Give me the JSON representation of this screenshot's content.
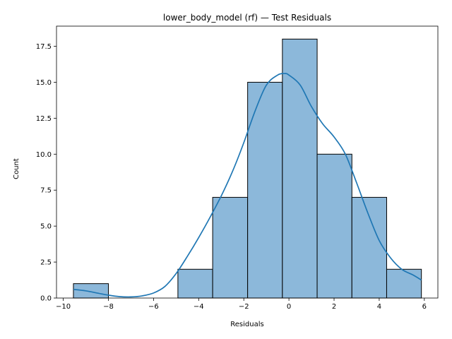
{
  "chart_data": {
    "type": "bar",
    "subtype": "histogram",
    "title": "lower_body_model (rf) — Test Residuals",
    "xlabel": "Residuals",
    "ylabel": "Count",
    "xlim": [
      -10.3,
      6.6
    ],
    "ylim": [
      0,
      18.9
    ],
    "xticks": [
      -10,
      -8,
      -6,
      -4,
      -2,
      0,
      2,
      4,
      6
    ],
    "xtick_labels": [
      "−10",
      "−8",
      "−6",
      "−4",
      "−2",
      "0",
      "2",
      "4",
      "6"
    ],
    "yticks": [
      0,
      2.5,
      5,
      7.5,
      10,
      12.5,
      15,
      17.5
    ],
    "ytick_labels": [
      "0.0",
      "2.5",
      "5.0",
      "7.5",
      "10.0",
      "12.5",
      "15.0",
      "17.5"
    ],
    "bins": [
      {
        "x0": -9.55,
        "x1": -8.0,
        "count": 1
      },
      {
        "x0": -8.0,
        "x1": -6.46,
        "count": 0
      },
      {
        "x0": -6.46,
        "x1": -4.92,
        "count": 0
      },
      {
        "x0": -4.92,
        "x1": -3.38,
        "count": 2
      },
      {
        "x0": -3.38,
        "x1": -1.83,
        "count": 7
      },
      {
        "x0": -1.83,
        "x1": -0.29,
        "count": 15
      },
      {
        "x0": -0.29,
        "x1": 1.25,
        "count": 18
      },
      {
        "x0": 1.25,
        "x1": 2.79,
        "count": 10
      },
      {
        "x0": 2.79,
        "x1": 4.33,
        "count": 7
      },
      {
        "x0": 4.33,
        "x1": 5.87,
        "count": 2
      }
    ],
    "kde": {
      "x": [
        -9.55,
        -9.0,
        -8.5,
        -8.0,
        -7.5,
        -7.0,
        -6.5,
        -6.0,
        -5.5,
        -5.0,
        -4.5,
        -4.0,
        -3.5,
        -3.0,
        -2.5,
        -2.0,
        -1.5,
        -1.0,
        -0.5,
        -0.2,
        0.0,
        0.5,
        1.0,
        1.5,
        2.0,
        2.5,
        3.0,
        3.5,
        4.0,
        4.5,
        5.0,
        5.5,
        5.87
      ],
      "y": [
        0.6,
        0.5,
        0.35,
        0.2,
        0.1,
        0.08,
        0.15,
        0.35,
        0.8,
        1.7,
        2.9,
        4.2,
        5.6,
        7.1,
        8.8,
        10.8,
        13.0,
        14.8,
        15.5,
        15.6,
        15.5,
        14.8,
        13.3,
        12.1,
        11.2,
        10.0,
        8.0,
        5.9,
        4.0,
        2.8,
        2.0,
        1.6,
        1.25
      ]
    },
    "bar_fill": "#8cb8da",
    "bar_edge": "#000000",
    "kde_color": "#1f77b4",
    "grid": false,
    "legend": "none"
  }
}
